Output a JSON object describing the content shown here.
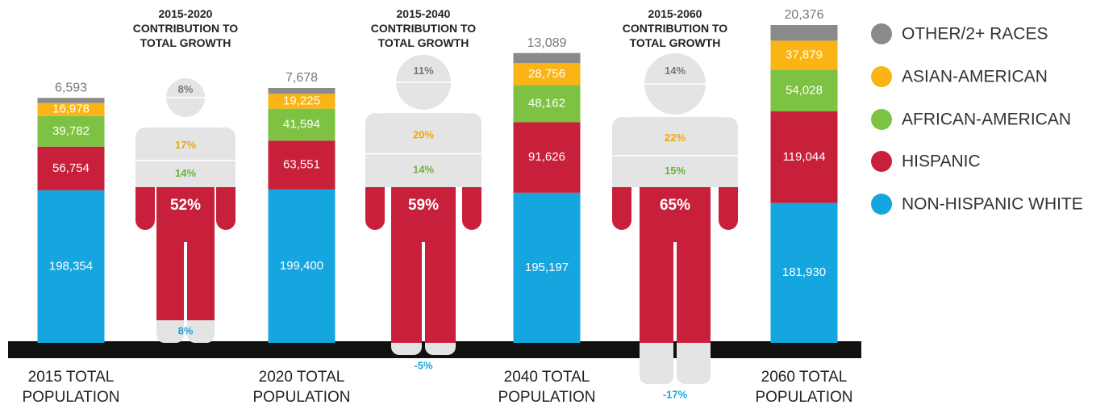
{
  "chart_data": {
    "type": "stacked_bar",
    "categories": [
      "2015 TOTAL POPULATION",
      "2020 TOTAL POPULATION",
      "2040 TOTAL POPULATION",
      "2060 TOTAL POPULATION"
    ],
    "series": [
      {
        "name": "NON-HISPANIC WHITE",
        "color": "#15a6e0",
        "values": [
          198354,
          199400,
          195197,
          181930
        ],
        "value_labels": [
          "198,354",
          "199,400",
          "195,197",
          "181,930"
        ]
      },
      {
        "name": "HISPANIC",
        "color": "#c8203a",
        "values": [
          56754,
          63551,
          91626,
          119044
        ],
        "value_labels": [
          "56,754",
          "63,551",
          "91,626",
          "119,044"
        ]
      },
      {
        "name": "AFRICAN-AMERICAN",
        "color": "#7dc242",
        "values": [
          39782,
          41594,
          48162,
          54028
        ],
        "value_labels": [
          "39,782",
          "41,594",
          "48,162",
          "54,028"
        ]
      },
      {
        "name": "ASIAN-AMERICAN",
        "color": "#fbb415",
        "values": [
          16978,
          19225,
          28756,
          37879
        ],
        "value_labels": [
          "16,978",
          "19,225",
          "28,756",
          "37,879"
        ]
      },
      {
        "name": "OTHER/2+ RACES",
        "color": "#8a8a8a",
        "values": [
          6593,
          7678,
          13089,
          20376
        ],
        "value_labels": [
          "6,593",
          "7,678",
          "13,089",
          "20,376"
        ]
      }
    ],
    "legend": "right",
    "contributions": [
      {
        "title": "2015-2020 CONTRIBUTION TO TOTAL GROWTH",
        "values": [
          8,
          52,
          14,
          17,
          8
        ],
        "value_labels": [
          "8%",
          "52%",
          "14%",
          "17%",
          "8%"
        ]
      },
      {
        "title": "2015-2040 CONTRIBUTION TO TOTAL GROWTH",
        "values": [
          -5,
          59,
          14,
          20,
          11
        ],
        "value_labels": [
          "-5%",
          "59%",
          "14%",
          "20%",
          "11%"
        ]
      },
      {
        "title": "2015-2060 CONTRIBUTION TO TOTAL GROWTH",
        "values": [
          -17,
          65,
          15,
          22,
          14
        ],
        "value_labels": [
          "-17%",
          "65%",
          "15%",
          "22%",
          "14%"
        ]
      }
    ]
  }
}
